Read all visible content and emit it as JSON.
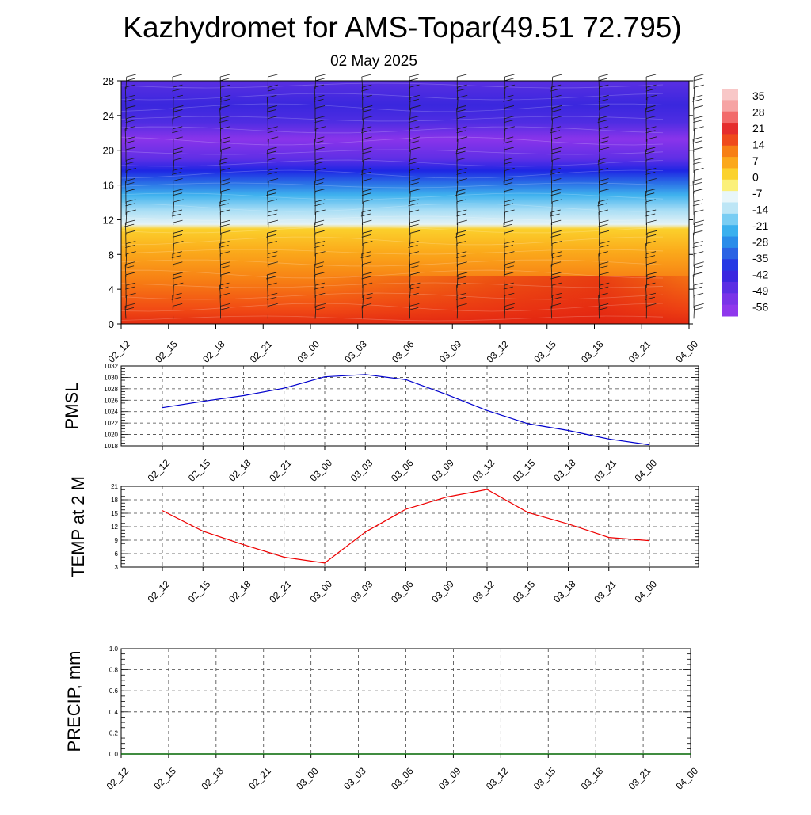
{
  "title": "Kazhydromet for AMS-Topar(49.51 72.795)",
  "subtitle": "02 May 2025",
  "chart_data": [
    {
      "type": "heatmap",
      "panel": "vertical-profile",
      "x_ticks": [
        "02_12",
        "02_15",
        "02_18",
        "02_21",
        "03_00",
        "03_03",
        "03_06",
        "03_09",
        "03_12",
        "03_15",
        "03_18",
        "03_21",
        "04_00"
      ],
      "y_ticks": [
        0,
        4,
        8,
        12,
        16,
        20,
        24,
        28
      ],
      "ylim": [
        0,
        28
      ],
      "colorbar_labels": [
        35,
        28,
        21,
        14,
        7,
        0,
        -7,
        -14,
        -21,
        -28,
        -35,
        -42,
        -49,
        -56
      ],
      "colorbar_range": [
        -60,
        38
      ],
      "wind_barbs": true
    },
    {
      "type": "line",
      "ylabel": "PMSL",
      "x": [
        "02_12",
        "02_15",
        "02_18",
        "02_21",
        "03_00",
        "03_03",
        "03_06",
        "03_09",
        "03_12",
        "03_15",
        "03_18",
        "03_21",
        "04_00"
      ],
      "values": [
        1024.7,
        1025.8,
        1026.8,
        1028.1,
        1030.1,
        1030.5,
        1029.6,
        1027.0,
        1024.2,
        1021.9,
        1020.7,
        1019.2,
        1018.2
      ],
      "ylim": [
        1018,
        1032
      ],
      "y_ticks": [
        1018,
        1020,
        1022,
        1024,
        1026,
        1028,
        1030,
        1032
      ],
      "color": "#0000cc",
      "grid": true
    },
    {
      "type": "line",
      "ylabel": "TEMP at 2 M",
      "x": [
        "02_12",
        "02_15",
        "02_18",
        "02_21",
        "03_00",
        "03_03",
        "03_06",
        "03_09",
        "03_12",
        "03_15",
        "03_18",
        "03_21",
        "04_00"
      ],
      "values": [
        15.6,
        11.0,
        8.0,
        5.2,
        3.9,
        10.8,
        15.9,
        18.6,
        20.3,
        15.2,
        12.6,
        9.6,
        8.9
      ],
      "ylim": [
        3,
        21
      ],
      "y_ticks": [
        3,
        6,
        9,
        12,
        15,
        18,
        21
      ],
      "color": "#ee0000",
      "grid": true
    },
    {
      "type": "line",
      "ylabel": "PRECIP, mm",
      "x": [
        "02_12",
        "02_15",
        "02_18",
        "02_21",
        "03_00",
        "03_03",
        "03_06",
        "03_09",
        "03_12",
        "03_15",
        "03_18",
        "03_21",
        "04_00"
      ],
      "values": [
        0,
        0,
        0,
        0,
        0,
        0,
        0,
        0,
        0,
        0,
        0,
        0,
        0
      ],
      "ylim": [
        0,
        1
      ],
      "y_ticks": [
        "0.0",
        "0.2",
        "0.4",
        "0.6",
        "0.8",
        "1.0"
      ],
      "color": "#006600",
      "grid": true
    }
  ]
}
